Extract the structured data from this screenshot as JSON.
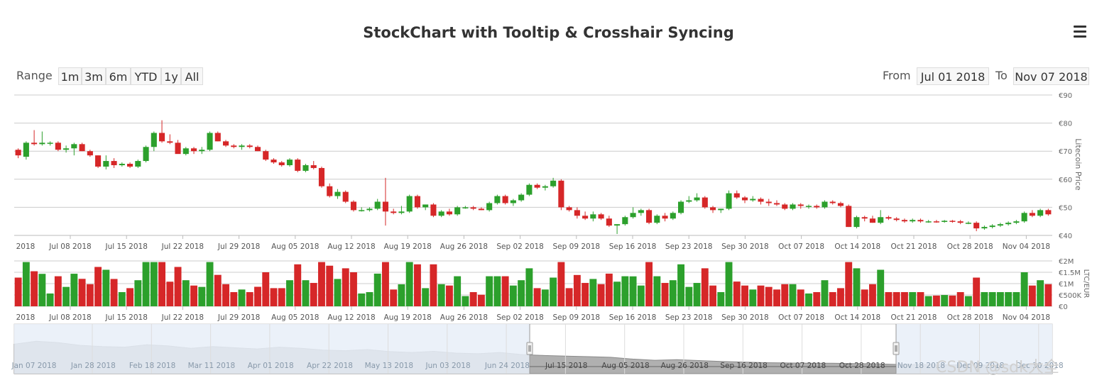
{
  "title": "StockChart with Tooltip & Crosshair Syncing",
  "menu_icon": "hamburger-menu-icon",
  "range_selector": {
    "label": "Range",
    "buttons": [
      "1m",
      "3m",
      "6m",
      "YTD",
      "1y",
      "All"
    ],
    "from_label": "From",
    "from_value": "Jul 01 2018",
    "to_label": "To",
    "to_value": "Nov 07 2018"
  },
  "watermark": "CSDN @sdk大全",
  "colors": {
    "up": "#2ca02c",
    "down": "#d62728",
    "grid": "#cccccc",
    "navigator_fill": "#e8eef8",
    "navigator_area": "#a9a9a9"
  },
  "chart_data": [
    {
      "type": "candlestick",
      "ylabel": "Litecoin Price",
      "ylim": [
        40,
        90
      ],
      "y_ticks": [
        "€40",
        "€50",
        "€60",
        "€70",
        "€80",
        "€90"
      ],
      "x_ticks": [
        "2018",
        "Jul 08 2018",
        "Jul 15 2018",
        "Jul 22 2018",
        "Jul 29 2018",
        "Aug 05 2018",
        "Aug 12 2018",
        "Aug 19 2018",
        "Aug 26 2018",
        "Sep 02 2018",
        "Sep 09 2018",
        "Sep 16 2018",
        "Sep 23 2018",
        "Sep 30 2018",
        "Oct 07 2018",
        "Oct 14 2018",
        "Oct 21 2018",
        "Oct 28 2018",
        "Nov 04 2018"
      ],
      "ohlc": [
        [
          70.5,
          71.0,
          67.5,
          68.5
        ],
        [
          68.0,
          73.5,
          67.0,
          73.0
        ],
        [
          73.0,
          77.5,
          72.0,
          72.5
        ],
        [
          72.5,
          77.0,
          72.0,
          73.0
        ],
        [
          73.0,
          73.5,
          72.0,
          73.0
        ],
        [
          73.0,
          73.5,
          70.0,
          70.5
        ],
        [
          70.5,
          72.0,
          69.5,
          71.0
        ],
        [
          71.0,
          73.0,
          68.5,
          72.5
        ],
        [
          72.5,
          73.0,
          70.0,
          70.0
        ],
        [
          70.0,
          70.5,
          68.0,
          68.5
        ],
        [
          68.5,
          68.5,
          64.0,
          64.5
        ],
        [
          64.5,
          68.5,
          63.5,
          66.5
        ],
        [
          66.5,
          67.5,
          64.0,
          65.0
        ],
        [
          65.0,
          66.0,
          64.5,
          65.5
        ],
        [
          65.5,
          66.0,
          64.0,
          64.5
        ],
        [
          64.5,
          67.0,
          64.0,
          66.5
        ],
        [
          66.5,
          72.0,
          66.0,
          71.5
        ],
        [
          71.5,
          77.0,
          70.0,
          76.5
        ],
        [
          76.5,
          81.0,
          73.0,
          73.5
        ],
        [
          73.5,
          76.0,
          72.5,
          73.0
        ],
        [
          73.0,
          74.0,
          69.5,
          69.0
        ],
        [
          69.0,
          71.5,
          68.5,
          71.0
        ],
        [
          71.0,
          71.5,
          69.0,
          70.0
        ],
        [
          70.0,
          71.5,
          69.0,
          70.5
        ],
        [
          70.5,
          77.0,
          70.0,
          76.5
        ],
        [
          76.5,
          77.0,
          73.5,
          73.5
        ],
        [
          73.5,
          74.0,
          71.5,
          72.0
        ],
        [
          72.0,
          72.5,
          71.0,
          71.5
        ],
        [
          71.5,
          72.5,
          70.5,
          72.0
        ],
        [
          72.0,
          72.5,
          71.0,
          71.5
        ],
        [
          71.5,
          72.0,
          70.0,
          70.0
        ],
        [
          70.0,
          70.5,
          66.5,
          67.0
        ],
        [
          67.0,
          67.5,
          65.5,
          66.0
        ],
        [
          66.0,
          66.5,
          64.5,
          65.0
        ],
        [
          65.0,
          67.5,
          64.5,
          67.0
        ],
        [
          67.0,
          67.5,
          62.5,
          63.0
        ],
        [
          63.0,
          65.5,
          62.5,
          65.0
        ],
        [
          65.0,
          66.5,
          63.5,
          64.0
        ],
        [
          64.0,
          64.5,
          57.0,
          57.5
        ],
        [
          57.5,
          58.5,
          53.5,
          54.0
        ],
        [
          54.0,
          56.5,
          53.0,
          55.5
        ],
        [
          55.5,
          56.0,
          51.5,
          52.0
        ],
        [
          52.0,
          52.5,
          48.5,
          49.0
        ],
        [
          49.0,
          50.0,
          48.5,
          49.0
        ],
        [
          49.0,
          50.0,
          48.5,
          49.5
        ],
        [
          49.5,
          53.0,
          49.0,
          52.0
        ],
        [
          52.0,
          60.5,
          43.5,
          48.5
        ],
        [
          48.5,
          49.5,
          47.5,
          48.0
        ],
        [
          48.0,
          50.5,
          47.5,
          48.5
        ],
        [
          48.5,
          54.5,
          48.0,
          54.0
        ],
        [
          54.0,
          54.5,
          49.5,
          50.0
        ],
        [
          50.0,
          51.0,
          49.0,
          51.0
        ],
        [
          51.0,
          51.5,
          46.5,
          47.0
        ],
        [
          47.0,
          49.0,
          46.5,
          48.5
        ],
        [
          48.5,
          49.5,
          47.0,
          47.5
        ],
        [
          47.5,
          50.5,
          47.0,
          50.0
        ],
        [
          50.0,
          50.5,
          49.5,
          50.0
        ],
        [
          50.0,
          50.5,
          49.0,
          49.5
        ],
        [
          49.5,
          50.0,
          49.0,
          49.0
        ],
        [
          49.0,
          52.0,
          48.5,
          51.5
        ],
        [
          51.5,
          54.5,
          51.0,
          54.0
        ],
        [
          54.0,
          54.5,
          51.0,
          51.5
        ],
        [
          51.5,
          53.0,
          50.5,
          52.5
        ],
        [
          52.5,
          55.0,
          52.0,
          54.5
        ],
        [
          54.5,
          58.5,
          54.0,
          58.0
        ],
        [
          58.0,
          58.5,
          56.5,
          57.0
        ],
        [
          57.0,
          58.0,
          56.0,
          57.5
        ],
        [
          57.5,
          60.5,
          57.0,
          59.5
        ],
        [
          59.5,
          60.0,
          49.0,
          50.0
        ],
        [
          50.0,
          50.5,
          48.5,
          49.0
        ],
        [
          49.0,
          50.0,
          46.0,
          47.0
        ],
        [
          47.0,
          48.5,
          45.5,
          46.0
        ],
        [
          46.0,
          48.5,
          45.0,
          47.5
        ],
        [
          47.5,
          48.0,
          45.5,
          46.0
        ],
        [
          46.0,
          47.0,
          43.0,
          43.5
        ],
        [
          43.5,
          44.0,
          40.5,
          44.0
        ],
        [
          44.0,
          47.0,
          43.5,
          46.5
        ],
        [
          46.5,
          50.0,
          46.0,
          48.0
        ],
        [
          48.0,
          49.5,
          47.0,
          49.0
        ],
        [
          49.0,
          49.5,
          44.0,
          44.5
        ],
        [
          44.5,
          47.5,
          44.0,
          47.0
        ],
        [
          47.0,
          48.0,
          45.0,
          46.0
        ],
        [
          46.0,
          48.5,
          45.5,
          48.0
        ],
        [
          48.0,
          52.5,
          47.5,
          52.0
        ],
        [
          52.0,
          54.0,
          51.5,
          52.5
        ],
        [
          52.5,
          55.0,
          52.0,
          53.5
        ],
        [
          53.5,
          54.0,
          49.5,
          50.0
        ],
        [
          50.0,
          50.5,
          48.0,
          49.0
        ],
        [
          49.0,
          49.5,
          48.0,
          49.5
        ],
        [
          49.5,
          56.0,
          49.0,
          55.0
        ],
        [
          55.0,
          56.0,
          53.0,
          53.5
        ],
        [
          53.5,
          54.0,
          51.5,
          52.5
        ],
        [
          52.5,
          54.0,
          52.0,
          53.0
        ],
        [
          53.0,
          53.5,
          51.0,
          52.0
        ],
        [
          52.0,
          53.0,
          50.5,
          51.5
        ],
        [
          51.5,
          52.5,
          50.5,
          51.0
        ],
        [
          51.0,
          51.5,
          49.0,
          49.5
        ],
        [
          49.5,
          51.5,
          49.0,
          51.0
        ],
        [
          51.0,
          51.5,
          49.5,
          50.5
        ],
        [
          50.5,
          51.0,
          49.5,
          50.5
        ],
        [
          50.5,
          51.0,
          49.5,
          50.0
        ],
        [
          50.0,
          52.5,
          49.5,
          52.0
        ],
        [
          52.0,
          52.5,
          51.0,
          51.5
        ],
        [
          51.5,
          52.0,
          50.0,
          50.5
        ],
        [
          50.5,
          51.0,
          43.0,
          43.0
        ],
        [
          43.0,
          47.0,
          42.5,
          46.5
        ],
        [
          46.5,
          47.0,
          45.0,
          46.0
        ],
        [
          46.0,
          47.0,
          44.5,
          44.5
        ],
        [
          44.5,
          49.0,
          44.0,
          46.5
        ],
        [
          46.5,
          47.0,
          45.5,
          46.0
        ],
        [
          46.0,
          46.5,
          45.0,
          45.5
        ],
        [
          45.5,
          46.0,
          44.5,
          45.0
        ],
        [
          45.0,
          46.0,
          44.5,
          45.5
        ],
        [
          45.5,
          46.0,
          44.5,
          45.0
        ],
        [
          45.0,
          45.5,
          44.5,
          45.0
        ],
        [
          45.0,
          45.5,
          44.5,
          44.8
        ],
        [
          44.8,
          45.5,
          44.5,
          45.2
        ],
        [
          45.2,
          45.5,
          44.5,
          45.0
        ],
        [
          45.0,
          45.5,
          44.0,
          44.5
        ],
        [
          44.5,
          45.0,
          44.0,
          44.5
        ],
        [
          44.5,
          45.0,
          41.5,
          42.5
        ],
        [
          42.5,
          43.5,
          42.0,
          43.0
        ],
        [
          43.0,
          44.0,
          42.5,
          43.5
        ],
        [
          43.5,
          44.5,
          43.0,
          44.0
        ],
        [
          44.0,
          45.0,
          43.5,
          44.5
        ],
        [
          44.5,
          45.5,
          44.0,
          45.0
        ],
        [
          45.0,
          48.5,
          44.5,
          48.0
        ],
        [
          48.0,
          49.0,
          46.5,
          47.0
        ],
        [
          47.0,
          49.5,
          46.5,
          49.0
        ],
        [
          49.0,
          49.5,
          47.0,
          47.5
        ]
      ]
    },
    {
      "type": "bar",
      "ylabel": "LTC/EUR",
      "ylim": [
        0,
        2000000
      ],
      "y_ticks": [
        "€0",
        "€500K",
        "€1M",
        "€1.5M",
        "€2M"
      ],
      "x_ticks": [
        "2018",
        "Jul 08 2018",
        "Jul 15 2018",
        "Jul 22 2018",
        "Jul 29 2018",
        "Aug 05 2018",
        "Aug 12 2018",
        "Aug 19 2018",
        "Aug 26 2018",
        "Sep 02 2018",
        "Sep 09 2018",
        "Sep 16 2018",
        "Sep 23 2018",
        "Sep 30 2018",
        "Oct 07 2018",
        "Oct 14 2018",
        "Oct 21 2018",
        "Oct 28 2018",
        "Nov 04 2018"
      ]
    },
    {
      "type": "area",
      "name": "navigator",
      "x_ticks": [
        "Jan 07 2018",
        "Jan 28 2018",
        "Feb 18 2018",
        "Mar 11 2018",
        "Apr 01 2018",
        "Apr 22 2018",
        "May 13 2018",
        "Jun 03 2018",
        "Jun 24 2018",
        "Jul 15 2018",
        "Aug 05 2018",
        "Aug 26 2018",
        "Sep 16 2018",
        "Oct 07 2018",
        "Oct 28 2018",
        "Nov 18 2018",
        "Dec 09 2018",
        "Dec 30 2018"
      ],
      "selected_range": [
        "Jul 01 2018",
        "Nov 07 2018"
      ]
    }
  ]
}
